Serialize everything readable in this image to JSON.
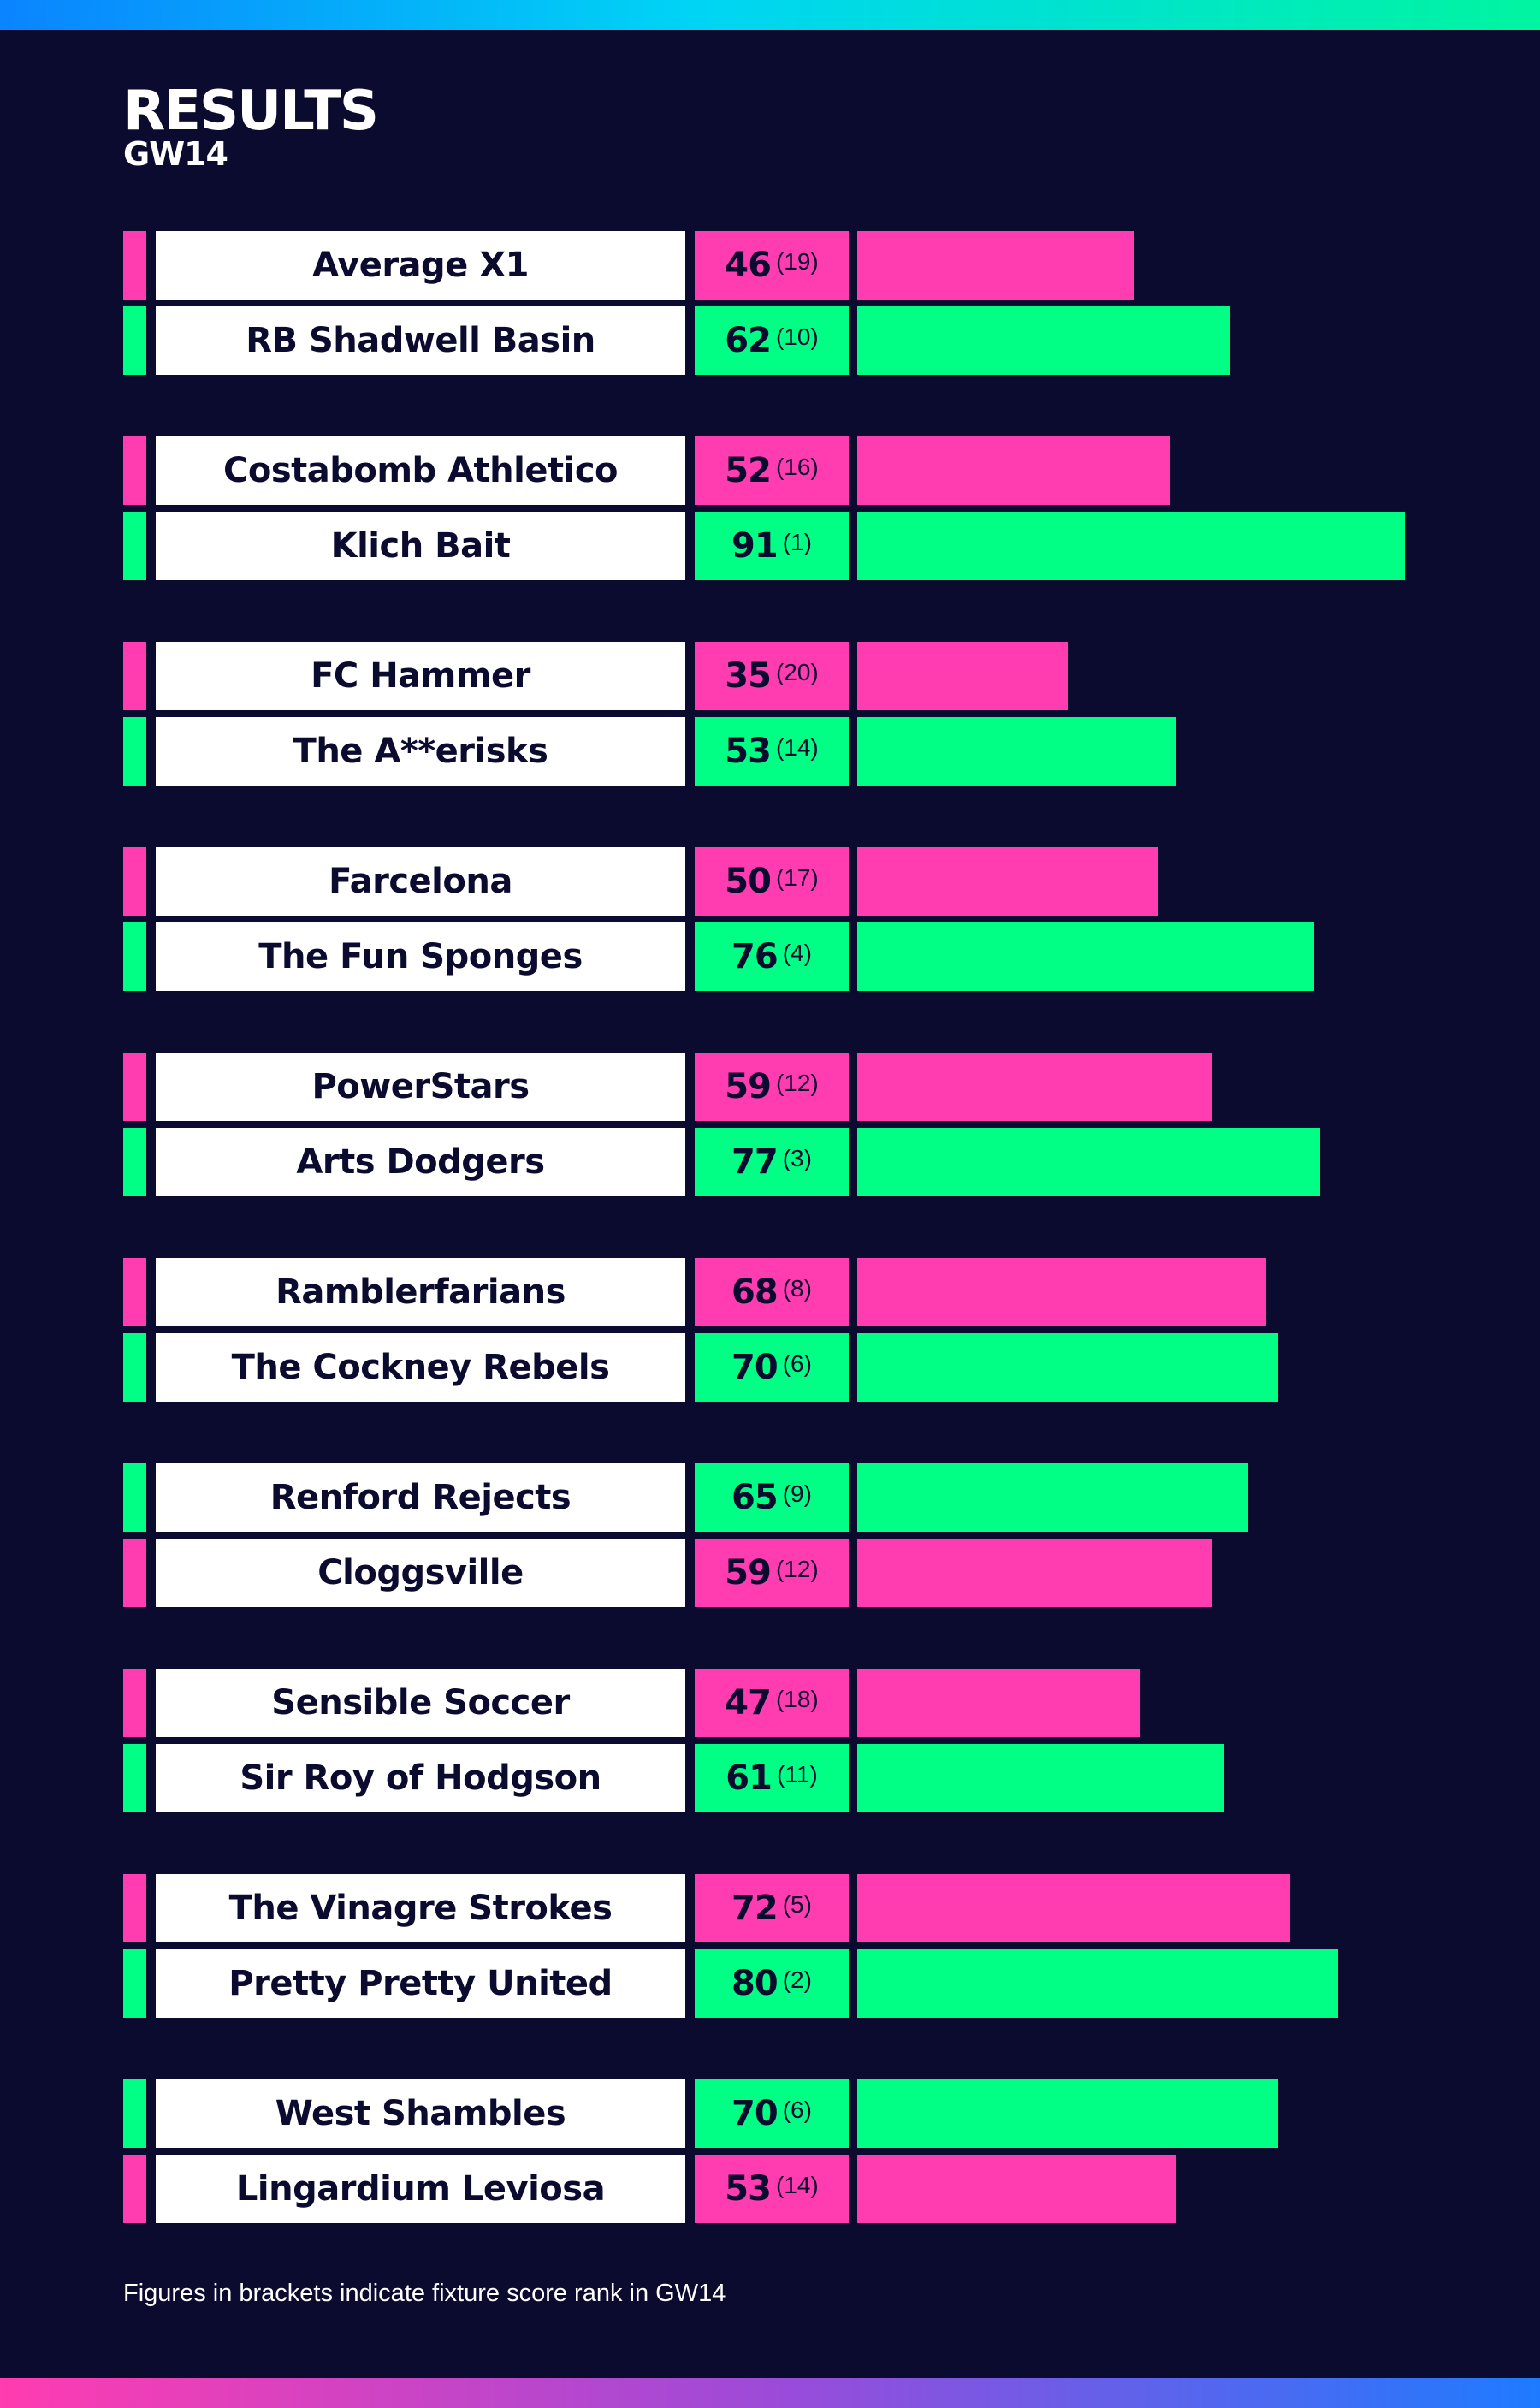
{
  "header": {
    "title": "RESULTS",
    "subtitle": "GW14"
  },
  "colors": {
    "background": "#0b0b30",
    "loser": "#ff3cb0",
    "winner": "#00ff84",
    "name_box": "#ffffff",
    "text_dark": "#0b0b30"
  },
  "chart_data": {
    "type": "bar",
    "title": "RESULTS",
    "subtitle": "GW14",
    "xlim": [
      0,
      100
    ],
    "fixtures": [
      {
        "teams": [
          {
            "name": "Average X1",
            "score": 46,
            "rank": "(19)",
            "result": "loss"
          },
          {
            "name": "RB Shadwell Basin",
            "score": 62,
            "rank": "(10)",
            "result": "win"
          }
        ]
      },
      {
        "teams": [
          {
            "name": "Costabomb Athletico",
            "score": 52,
            "rank": "(16)",
            "result": "loss"
          },
          {
            "name": "Klich Bait",
            "score": 91,
            "rank": "(1)",
            "result": "win"
          }
        ]
      },
      {
        "teams": [
          {
            "name": "FC Hammer",
            "score": 35,
            "rank": "(20)",
            "result": "loss"
          },
          {
            "name": "The A**erisks",
            "score": 53,
            "rank": "(14)",
            "result": "win"
          }
        ]
      },
      {
        "teams": [
          {
            "name": "Farcelona",
            "score": 50,
            "rank": "(17)",
            "result": "loss"
          },
          {
            "name": "The Fun Sponges",
            "score": 76,
            "rank": "(4)",
            "result": "win"
          }
        ]
      },
      {
        "teams": [
          {
            "name": "PowerStars",
            "score": 59,
            "rank": "(12)",
            "result": "loss"
          },
          {
            "name": "Arts Dodgers",
            "score": 77,
            "rank": "(3)",
            "result": "win"
          }
        ]
      },
      {
        "teams": [
          {
            "name": "Ramblerfarians",
            "score": 68,
            "rank": "(8)",
            "result": "loss"
          },
          {
            "name": "The Cockney Rebels",
            "score": 70,
            "rank": "(6)",
            "result": "win"
          }
        ]
      },
      {
        "teams": [
          {
            "name": "Renford Rejects",
            "score": 65,
            "rank": "(9)",
            "result": "win"
          },
          {
            "name": "Cloggsville",
            "score": 59,
            "rank": "(12)",
            "result": "loss"
          }
        ]
      },
      {
        "teams": [
          {
            "name": "Sensible Soccer",
            "score": 47,
            "rank": "(18)",
            "result": "loss"
          },
          {
            "name": "Sir Roy of Hodgson",
            "score": 61,
            "rank": "(11)",
            "result": "win"
          }
        ]
      },
      {
        "teams": [
          {
            "name": "The Vinagre Strokes",
            "score": 72,
            "rank": "(5)",
            "result": "loss"
          },
          {
            "name": "Pretty Pretty United",
            "score": 80,
            "rank": "(2)",
            "result": "win"
          }
        ]
      },
      {
        "teams": [
          {
            "name": "West Shambles",
            "score": 70,
            "rank": "(6)",
            "result": "win"
          },
          {
            "name": "Lingardium Leviosa",
            "score": 53,
            "rank": "(14)",
            "result": "loss"
          }
        ]
      }
    ]
  },
  "footnote": "Figures in brackets indicate fixture score rank in GW14"
}
